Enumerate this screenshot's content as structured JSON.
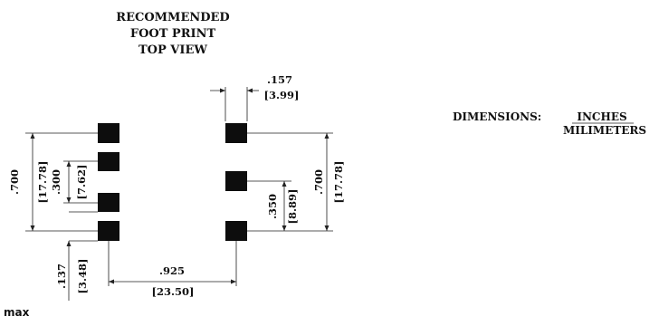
{
  "title": {
    "line1": "RECOMMENDED",
    "line2": "FOOT PRINT",
    "line3": "TOP VIEW"
  },
  "units_legend": {
    "label": "DIMENSIONS:",
    "primary": "INCHES",
    "secondary": "MILIMETERS"
  },
  "dimensions": {
    "pad_width_in": ".157",
    "pad_width_mm": "[3.99]",
    "left_span_in": ".700",
    "left_span_mm": "[17.78]",
    "left_pitch_in": ".300",
    "left_pitch_mm": "[7.62]",
    "right_span_in": ".700",
    "right_span_mm": "[17.78]",
    "right_pitch_in": ".350",
    "right_pitch_mm": "[8.89]",
    "row_spacing_in": ".925",
    "row_spacing_mm": "[23.50]",
    "pad_height_in": ".137",
    "pad_height_mm": "[3.48]"
  },
  "note": "max"
}
